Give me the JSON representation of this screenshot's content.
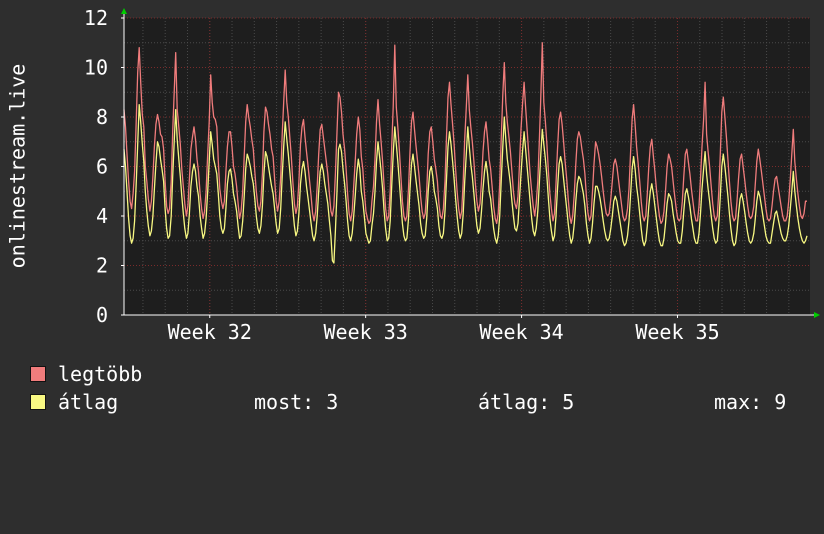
{
  "colors": {
    "background": "#2e2e2e",
    "plot_background": "#1e1e1e",
    "grid_major": "#7a2b2b",
    "grid_minor": "#4a4a4a",
    "axis": "#ffffff",
    "max_series": "#f07c7c",
    "avg_series": "#f8f882",
    "arrow": "#00cc00"
  },
  "chart_data": {
    "type": "line",
    "ylabel": "onlinestream.live",
    "ylim": [
      0,
      12
    ],
    "y_ticks": [
      0,
      2,
      4,
      6,
      8,
      10,
      12
    ],
    "x_unit": "weeks",
    "xlim": [
      31.45,
      35.85
    ],
    "x_ticks": [
      {
        "label": "Week 32",
        "x": 32
      },
      {
        "label": "Week 33",
        "x": 33
      },
      {
        "label": "Week 34",
        "x": 34
      },
      {
        "label": "Week 35",
        "x": 35
      }
    ],
    "grid": true,
    "legend_position": "bottom-left",
    "series": [
      {
        "name": "legtöbb",
        "color": "#f07c7c",
        "values": [
          8.3,
          7.6,
          6.5,
          5.4,
          4.6,
          4.3,
          4.9,
          5.8,
          7.8,
          9.8,
          10.8,
          9.4,
          8.1,
          7.6,
          6.0,
          5.4,
          4.7,
          4.2,
          4.6,
          5.6,
          6.8,
          7.7,
          8.1,
          7.8,
          7.3,
          7.2,
          6.7,
          5.4,
          4.4,
          4.1,
          4.3,
          5.4,
          7.4,
          9.0,
          10.6,
          8.3,
          7.6,
          6.9,
          5.9,
          5.2,
          4.5,
          4.0,
          4.4,
          5.5,
          6.7,
          7.2,
          7.6,
          7.1,
          6.3,
          5.8,
          4.9,
          4.3,
          3.9,
          4.2,
          5.0,
          6.5,
          7.8,
          9.7,
          8.6,
          8.0,
          7.9,
          7.6,
          6.2,
          5.1,
          4.6,
          4.3,
          4.6,
          5.8,
          6.8,
          7.4,
          7.4,
          6.8,
          6.0,
          5.7,
          5.2,
          4.5,
          3.9,
          4.2,
          5.0,
          6.4,
          7.8,
          8.5,
          8.0,
          7.6,
          7.1,
          6.7,
          5.8,
          5.0,
          4.4,
          4.2,
          4.6,
          5.7,
          7.4,
          8.4,
          8.2,
          7.7,
          7.3,
          6.7,
          6.4,
          5.5,
          4.6,
          4.2,
          4.6,
          5.6,
          7.3,
          8.6,
          9.9,
          8.6,
          8.0,
          7.2,
          6.4,
          5.4,
          4.5,
          4.1,
          4.4,
          5.4,
          6.9,
          7.6,
          7.9,
          7.2,
          6.6,
          6.0,
          5.4,
          4.8,
          4.1,
          3.8,
          4.2,
          5.2,
          6.5,
          7.5,
          7.7,
          7.2,
          6.7,
          6.2,
          5.7,
          4.9,
          4.2,
          4.0,
          4.4,
          5.7,
          7.4,
          9.0,
          8.8,
          8.2,
          7.3,
          6.7,
          5.9,
          4.9,
          4.1,
          3.8,
          4.2,
          5.2,
          6.2,
          7.3,
          8.0,
          7.5,
          6.4,
          5.9,
          5.0,
          4.2,
          3.9,
          3.7,
          3.8,
          4.6,
          5.2,
          6.3,
          7.8,
          8.7,
          7.7,
          7.0,
          6.2,
          5.2,
          4.3,
          3.8,
          4.0,
          5.0,
          6.8,
          8.4,
          10.9,
          8.4,
          7.6,
          6.7,
          5.6,
          4.6,
          4.0,
          3.8,
          4.0,
          5.1,
          6.6,
          7.8,
          8.2,
          7.5,
          6.8,
          6.2,
          5.6,
          4.8,
          4.2,
          3.9,
          4.1,
          5.0,
          6.5,
          7.4,
          7.6,
          7.0,
          6.3,
          5.9,
          5.4,
          4.5,
          4.0,
          3.9,
          4.3,
          5.4,
          7.2,
          8.8,
          9.4,
          8.5,
          7.7,
          6.9,
          5.9,
          5.0,
          4.3,
          3.9,
          4.2,
          5.4,
          7.1,
          8.4,
          9.7,
          8.3,
          7.6,
          7.0,
          6.2,
          5.3,
          4.6,
          4.2,
          4.5,
          5.4,
          6.6,
          7.4,
          7.8,
          7.1,
          6.3,
          5.9,
          5.2,
          4.4,
          3.9,
          3.7,
          4.1,
          5.3,
          7.1,
          8.9,
          10.2,
          8.6,
          7.8,
          7.2,
          6.6,
          5.8,
          5.0,
          4.5,
          4.3,
          4.8,
          6.1,
          7.5,
          8.5,
          9.4,
          8.4,
          7.5,
          6.6,
          5.7,
          5.0,
          4.4,
          4.0,
          4.5,
          5.4,
          7.0,
          8.8,
          11.0,
          8.6,
          7.8,
          6.9,
          5.8,
          4.9,
          4.3,
          3.8,
          4.1,
          5.3,
          6.7,
          7.9,
          8.2,
          7.7,
          7.0,
          6.2,
          5.5,
          4.7,
          4.0,
          3.7,
          4.0,
          4.9,
          6.1,
          7.1,
          7.4,
          7.2,
          6.7,
          6.3,
          5.7,
          4.8,
          4.1,
          3.8,
          4.0,
          5.0,
          6.1,
          7.0,
          6.8,
          6.5,
          6.1,
          5.6,
          5.0,
          4.5,
          4.1,
          4.0,
          4.1,
          4.7,
          5.4,
          6.1,
          6.3,
          6.0,
          5.5,
          5.0,
          4.5,
          4.0,
          3.8,
          3.9,
          4.3,
          5.1,
          6.5,
          7.9,
          8.5,
          7.7,
          6.8,
          6.1,
          5.4,
          4.6,
          4.0,
          3.8,
          4.0,
          4.9,
          6.0,
          6.8,
          7.1,
          6.4,
          5.8,
          5.1,
          4.5,
          4.0,
          3.7,
          3.8,
          4.2,
          5.0,
          6.0,
          6.5,
          6.3,
          6.0,
          5.4,
          4.8,
          4.3,
          3.9,
          3.8,
          3.9,
          4.6,
          5.6,
          6.5,
          6.7,
          6.2,
          5.7,
          5.1,
          4.6,
          4.1,
          3.8,
          3.8,
          4.4,
          5.5,
          6.8,
          7.9,
          9.4,
          7.3,
          6.6,
          6.0,
          5.2,
          4.5,
          4.0,
          3.8,
          4.0,
          5.0,
          6.5,
          8.2,
          8.8,
          8.0,
          7.2,
          6.3,
          5.4,
          4.6,
          4.0,
          3.8,
          3.9,
          4.6,
          5.5,
          6.3,
          6.5,
          6.0,
          5.5,
          4.9,
          4.4,
          4.0,
          3.9,
          4.0,
          4.4,
          5.3,
          6.2,
          6.7,
          6.3,
          5.8,
          5.3,
          4.8,
          4.3,
          3.9,
          3.8,
          3.9,
          4.4,
          5.0,
          5.5,
          5.6,
          5.2,
          4.8,
          4.4,
          4.0,
          3.8,
          3.8,
          4.0,
          4.6,
          5.5,
          6.5,
          7.5,
          6.2,
          5.5,
          4.9,
          4.4,
          4.0,
          3.9,
          4.1,
          4.6,
          4.6
        ]
      },
      {
        "name": "átlag",
        "color": "#f8f882",
        "values": [
          6.7,
          6.0,
          5.0,
          3.9,
          3.2,
          2.9,
          3.1,
          3.8,
          5.3,
          6.9,
          8.5,
          7.8,
          6.9,
          6.2,
          5.0,
          4.2,
          3.6,
          3.2,
          3.4,
          4.0,
          5.1,
          6.1,
          7.0,
          6.8,
          6.3,
          5.9,
          5.4,
          4.3,
          3.5,
          3.1,
          3.2,
          4.0,
          5.6,
          7.0,
          8.3,
          7.1,
          6.3,
          5.6,
          4.8,
          4.1,
          3.5,
          3.1,
          3.3,
          4.1,
          5.2,
          5.8,
          6.1,
          5.8,
          5.2,
          4.8,
          4.0,
          3.5,
          3.1,
          3.3,
          3.9,
          5.0,
          6.2,
          7.4,
          6.9,
          6.3,
          6.0,
          5.7,
          4.9,
          4.0,
          3.5,
          3.3,
          3.5,
          4.3,
          5.3,
          5.8,
          5.9,
          5.5,
          4.9,
          4.6,
          4.2,
          3.6,
          3.1,
          3.2,
          3.8,
          4.8,
          5.9,
          6.5,
          6.3,
          6.0,
          5.6,
          5.3,
          4.7,
          4.0,
          3.5,
          3.3,
          3.6,
          4.4,
          5.7,
          6.6,
          6.4,
          6.0,
          5.6,
          5.2,
          4.9,
          4.3,
          3.7,
          3.3,
          3.5,
          4.3,
          5.6,
          6.8,
          7.8,
          7.1,
          6.5,
          5.8,
          5.1,
          4.3,
          3.6,
          3.2,
          3.4,
          4.1,
          5.3,
          5.9,
          6.2,
          5.8,
          5.2,
          4.7,
          4.2,
          3.7,
          3.2,
          3.0,
          3.3,
          4.0,
          5.0,
          5.8,
          6.1,
          5.8,
          5.3,
          4.9,
          4.5,
          3.8,
          3.2,
          2.2,
          2.1,
          3.4,
          5.0,
          6.7,
          6.9,
          6.6,
          5.9,
          5.3,
          4.6,
          3.8,
          3.2,
          3.0,
          3.3,
          4.0,
          4.8,
          5.7,
          6.3,
          5.9,
          5.0,
          4.6,
          4.0,
          3.3,
          3.1,
          2.9,
          3.0,
          3.6,
          4.1,
          5.0,
          6.2,
          7.0,
          6.4,
          5.8,
          5.1,
          4.2,
          3.5,
          3.0,
          3.1,
          3.8,
          5.2,
          6.5,
          7.6,
          6.9,
          6.2,
          5.4,
          4.5,
          3.7,
          3.2,
          3.0,
          3.1,
          3.9,
          5.1,
          6.1,
          6.5,
          6.0,
          5.4,
          4.9,
          4.4,
          3.7,
          3.3,
          3.1,
          3.2,
          3.9,
          5.0,
          5.8,
          6.0,
          5.6,
          5.0,
          4.7,
          4.3,
          3.6,
          3.2,
          3.1,
          3.3,
          4.2,
          5.5,
          6.8,
          7.4,
          6.9,
          6.2,
          5.5,
          4.7,
          4.0,
          3.4,
          3.1,
          3.3,
          4.1,
          5.4,
          6.5,
          7.6,
          6.8,
          6.1,
          5.6,
          4.9,
          4.2,
          3.6,
          3.3,
          3.5,
          4.2,
          5.1,
          5.8,
          6.2,
          5.7,
          5.0,
          4.7,
          4.1,
          3.5,
          3.1,
          2.9,
          3.2,
          4.0,
          5.4,
          6.8,
          8.0,
          7.1,
          6.3,
          5.8,
          5.3,
          4.6,
          4.0,
          3.5,
          3.4,
          3.7,
          4.7,
          5.7,
          6.6,
          7.4,
          6.7,
          6.0,
          5.3,
          4.6,
          3.9,
          3.4,
          3.2,
          3.5,
          4.2,
          5.3,
          6.5,
          7.5,
          6.9,
          6.3,
          5.6,
          4.7,
          3.9,
          3.4,
          3.0,
          3.2,
          4.0,
          5.1,
          6.1,
          6.4,
          6.1,
          5.5,
          4.9,
          4.3,
          3.7,
          3.2,
          2.9,
          3.1,
          3.7,
          4.6,
          5.3,
          5.6,
          5.5,
          5.2,
          4.9,
          4.4,
          3.7,
          3.2,
          2.9,
          3.1,
          3.7,
          4.5,
          5.2,
          5.2,
          5.0,
          4.7,
          4.3,
          3.8,
          3.4,
          3.1,
          3.0,
          3.1,
          3.5,
          4.0,
          4.6,
          4.8,
          4.6,
          4.2,
          3.8,
          3.4,
          3.0,
          2.8,
          2.9,
          3.2,
          3.8,
          4.8,
          5.9,
          6.4,
          5.9,
          5.2,
          4.7,
          4.1,
          3.5,
          3.0,
          2.8,
          3.0,
          3.6,
          4.4,
          5.0,
          5.3,
          4.9,
          4.4,
          3.9,
          3.4,
          3.0,
          2.8,
          2.8,
          3.1,
          3.7,
          4.5,
          4.9,
          4.8,
          4.6,
          4.1,
          3.7,
          3.3,
          3.0,
          2.9,
          2.9,
          3.4,
          4.2,
          4.9,
          5.1,
          4.8,
          4.4,
          3.9,
          3.5,
          3.1,
          2.9,
          2.9,
          3.3,
          4.1,
          5.1,
          5.9,
          6.6,
          5.7,
          5.1,
          4.6,
          4.0,
          3.5,
          3.1,
          2.9,
          3.0,
          3.7,
          4.8,
          6.0,
          6.5,
          6.0,
          5.4,
          4.8,
          4.1,
          3.5,
          3.0,
          2.8,
          2.9,
          3.4,
          4.1,
          4.7,
          4.9,
          4.6,
          4.2,
          3.7,
          3.3,
          3.0,
          2.9,
          3.0,
          3.3,
          3.9,
          4.6,
          5.0,
          4.8,
          4.4,
          4.0,
          3.6,
          3.2,
          3.0,
          2.9,
          2.9,
          3.3,
          3.7,
          4.1,
          4.2,
          3.9,
          3.6,
          3.3,
          3.1,
          3.0,
          3.0,
          3.2,
          3.6,
          4.3,
          5.0,
          5.8,
          5.0,
          4.4,
          3.9,
          3.5,
          3.2,
          3.0,
          2.9,
          3.0,
          3.2
        ]
      }
    ]
  },
  "legend": {
    "max_label": "legtöbb",
    "avg_label": "átlag",
    "now_stat": "most: 3",
    "avg_stat": "átlag: 5",
    "max_stat": "max: 9"
  }
}
